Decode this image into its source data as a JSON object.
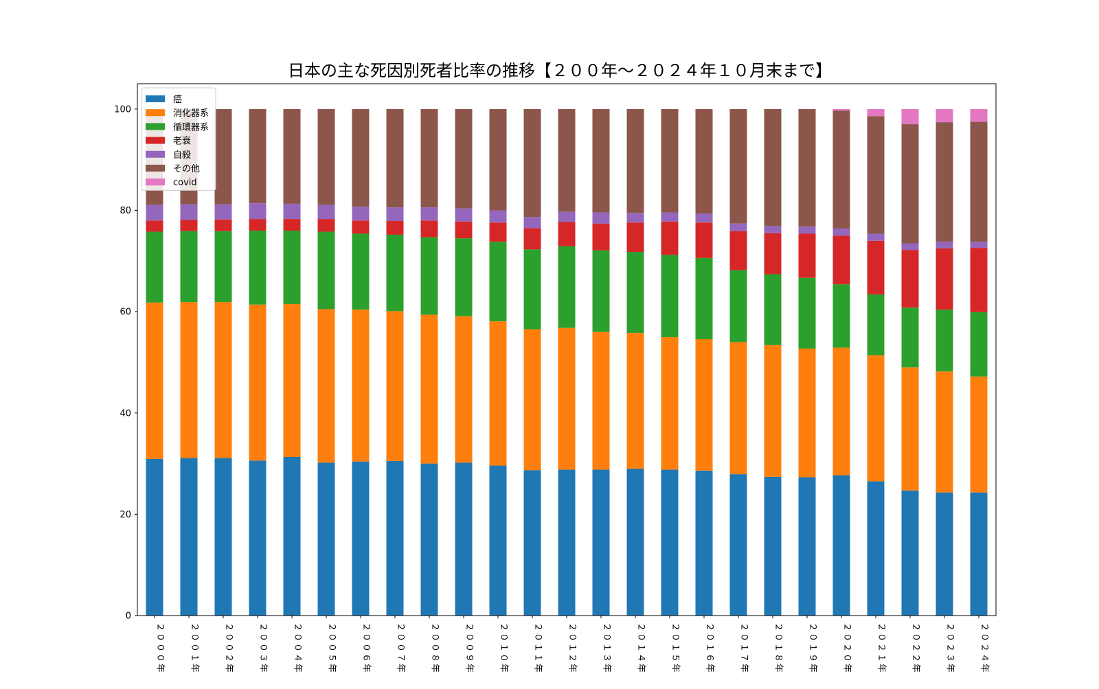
{
  "chart_data": {
    "type": "bar",
    "stacked": true,
    "title": "日本の主な死因別死者比率の推移【２００年〜２０２４年１０月末まで】",
    "xlabel": "",
    "ylabel": "",
    "ylim": [
      0,
      105
    ],
    "yticks": [
      0,
      20,
      40,
      60,
      80,
      100
    ],
    "grid": false,
    "legend_position": "top-left",
    "categories": [
      "２０００年",
      "２００１年",
      "２００２年",
      "２００３年",
      "２００４年",
      "２００５年",
      "２００６年",
      "２００７年",
      "２００８年",
      "２００９年",
      "２０１０年",
      "２０１１年",
      "２０１２年",
      "２０１３年",
      "２０１４年",
      "２０１５年",
      "２０１６年",
      "２０１７年",
      "２０１８年",
      "２０１９年",
      "２０２０年",
      "２０２１年",
      "２０２２年",
      "２０２３年",
      "２０２４年"
    ],
    "series": [
      {
        "name": "癌",
        "color": "#1f77b4",
        "values": [
          30.9,
          31.1,
          31.1,
          30.6,
          31.3,
          30.2,
          30.4,
          30.5,
          30.0,
          30.2,
          29.6,
          28.7,
          28.8,
          28.8,
          29.0,
          28.8,
          28.6,
          27.9,
          27.4,
          27.3,
          27.7,
          26.5,
          24.7,
          24.3,
          24.3
        ]
      },
      {
        "name": "消化器系",
        "color": "#ff7f0e",
        "values": [
          30.9,
          30.8,
          30.8,
          30.8,
          30.2,
          30.3,
          30.0,
          29.6,
          29.4,
          28.9,
          28.5,
          27.8,
          28.0,
          27.2,
          26.8,
          26.2,
          26.0,
          26.1,
          26.0,
          25.4,
          25.2,
          24.9,
          24.3,
          23.9,
          22.9
        ]
      },
      {
        "name": "循環器系",
        "color": "#2ca02c",
        "values": [
          14.0,
          14.0,
          14.0,
          14.6,
          14.5,
          15.3,
          15.0,
          15.1,
          15.3,
          15.4,
          15.7,
          15.8,
          16.1,
          16.1,
          16.0,
          16.2,
          16.0,
          14.2,
          14.0,
          14.0,
          12.5,
          12.0,
          11.8,
          12.2,
          12.7
        ]
      },
      {
        "name": "老衰",
        "color": "#d62728",
        "values": [
          2.2,
          2.2,
          2.3,
          2.3,
          2.3,
          2.5,
          2.6,
          2.7,
          3.3,
          3.3,
          3.8,
          4.2,
          4.8,
          5.3,
          5.8,
          6.6,
          7.0,
          7.7,
          8.1,
          8.7,
          9.6,
          10.6,
          11.4,
          12.1,
          12.7
        ]
      },
      {
        "name": "自殺",
        "color": "#9467bd",
        "values": [
          3.1,
          3.1,
          3.0,
          3.1,
          3.0,
          2.8,
          2.7,
          2.7,
          2.6,
          2.6,
          2.4,
          2.2,
          2.0,
          2.2,
          1.9,
          1.8,
          1.7,
          1.5,
          1.4,
          1.4,
          1.4,
          1.4,
          1.3,
          1.3,
          1.2
        ]
      },
      {
        "name": "その他",
        "color": "#8c564b",
        "values": [
          18.9,
          18.8,
          18.8,
          18.6,
          18.7,
          18.9,
          19.3,
          19.4,
          19.4,
          19.6,
          20.0,
          21.3,
          20.3,
          20.4,
          20.5,
          20.4,
          20.7,
          22.6,
          23.1,
          23.2,
          23.3,
          23.2,
          23.5,
          23.6,
          23.7
        ]
      },
      {
        "name": "covid",
        "color": "#e377c2",
        "values": [
          0,
          0,
          0,
          0,
          0,
          0,
          0,
          0,
          0,
          0,
          0,
          0,
          0,
          0,
          0,
          0,
          0,
          0,
          0,
          0,
          0.3,
          1.4,
          3.0,
          2.6,
          2.5
        ]
      }
    ]
  }
}
